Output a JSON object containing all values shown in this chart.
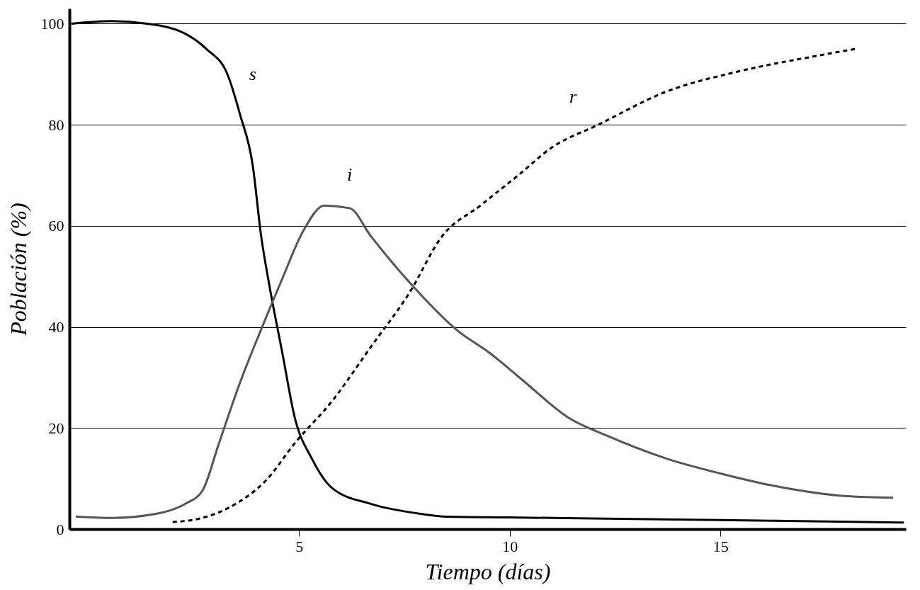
{
  "chart_data": {
    "type": "line",
    "xlabel": "Tiempo (días)",
    "ylabel": "Población (%)",
    "xlim": [
      -0.45,
      19.4
    ],
    "xticks": [
      5,
      10,
      15
    ],
    "ylim": [
      0,
      103
    ],
    "yticks": [
      0,
      20,
      40,
      60,
      80,
      100
    ],
    "grid": "y",
    "marker": "none",
    "series": [
      {
        "name": "s",
        "color": "#000000",
        "line_style": "solid",
        "x": [
          -0.4,
          0.56,
          1.4,
          2.3,
          2.8,
          3.3,
          3.6,
          3.9,
          4.1,
          4.3,
          4.6,
          4.9,
          5.3,
          5.8,
          6.7,
          7.9,
          8.4,
          10,
          15,
          19.35
        ],
        "values": [
          100,
          100.5,
          100,
          98,
          95,
          90,
          82,
          72,
          58,
          48,
          35,
          22,
          14,
          8,
          5,
          3,
          2.5,
          2.3,
          1.8,
          1.3
        ]
      },
      {
        "name": "i",
        "color": "#555555",
        "line_style": "solid",
        "x": [
          -0.3,
          0.56,
          1.6,
          2.3,
          2.7,
          3.1,
          3.6,
          4.1,
          4.6,
          5.1,
          5.6,
          6.2,
          6.7,
          7.6,
          8.8,
          9.5,
          10.3,
          11.4,
          12.3,
          13.7,
          15,
          16.3,
          18,
          19.1
        ],
        "values": [
          2.5,
          2.2,
          3,
          5,
          7.5,
          17,
          29,
          39.5,
          49.5,
          59,
          64,
          63.5,
          58,
          49,
          39,
          35,
          29.5,
          22,
          18.5,
          14,
          11,
          8.5,
          6.5,
          6.2
        ]
      },
      {
        "name": "r",
        "color": "#000000",
        "line_style": "dashed",
        "x": [
          2,
          2.7,
          3.5,
          4.2,
          4.9,
          5.8,
          6.7,
          7.6,
          8.4,
          9.3,
          10.2,
          11,
          12.1,
          13.7,
          15.4,
          17.2,
          18.2
        ],
        "values": [
          1.4,
          2.2,
          5,
          9.5,
          17,
          25.5,
          36,
          46.5,
          58,
          64,
          70,
          75.5,
          80,
          86.5,
          90.5,
          93.5,
          95
        ]
      }
    ]
  }
}
